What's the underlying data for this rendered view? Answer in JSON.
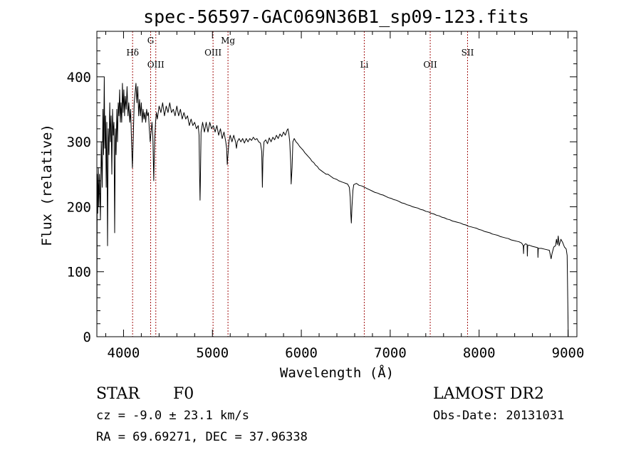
{
  "chart_data": {
    "type": "line",
    "title": "spec-56597-GAC069N36B1_sp09-123.fits",
    "xlabel": "Wavelength (Å)",
    "ylabel": "Flux (relative)",
    "xlim": [
      3700,
      9100
    ],
    "ylim": [
      0,
      470
    ],
    "xticks": [
      4000,
      5000,
      6000,
      7000,
      8000,
      9000
    ],
    "yticks": [
      0,
      100,
      200,
      300,
      400
    ],
    "grid": false,
    "legend": "none",
    "spectral_lines": [
      {
        "name": "Hδ",
        "wavelength": 4102,
        "label_row": "mid"
      },
      {
        "name": "G",
        "wavelength": 4305,
        "label_row": "top"
      },
      {
        "name": "OIII",
        "wavelength": 4363,
        "label_row": "low"
      },
      {
        "name": "OIII",
        "wavelength": 5007,
        "label_row": "mid"
      },
      {
        "name": "Mg",
        "wavelength": 5175,
        "label_row": "top"
      },
      {
        "name": "Li",
        "wavelength": 6708,
        "label_row": "low"
      },
      {
        "name": "OII",
        "wavelength": 7450,
        "label_row": "low"
      },
      {
        "name": "SII",
        "wavelength": 7870,
        "label_row": "mid"
      }
    ],
    "series": [
      {
        "name": "flux",
        "points": [
          [
            3700,
            0
          ],
          [
            3704,
            250
          ],
          [
            3710,
            190
          ],
          [
            3716,
            260
          ],
          [
            3722,
            200
          ],
          [
            3730,
            250
          ],
          [
            3740,
            180
          ],
          [
            3750,
            300
          ],
          [
            3760,
            230
          ],
          [
            3768,
            350
          ],
          [
            3775,
            280
          ],
          [
            3783,
            400
          ],
          [
            3790,
            290
          ],
          [
            3798,
            340
          ],
          [
            3805,
            230
          ],
          [
            3812,
            330
          ],
          [
            3820,
            140
          ],
          [
            3828,
            320
          ],
          [
            3836,
            280
          ],
          [
            3845,
            360
          ],
          [
            3853,
            300
          ],
          [
            3860,
            340
          ],
          [
            3868,
            250
          ],
          [
            3876,
            350
          ],
          [
            3884,
            310
          ],
          [
            3892,
            330
          ],
          [
            3900,
            160
          ],
          [
            3908,
            320
          ],
          [
            3916,
            280
          ],
          [
            3924,
            350
          ],
          [
            3932,
            300
          ],
          [
            3940,
            360
          ],
          [
            3948,
            340
          ],
          [
            3956,
            380
          ],
          [
            3964,
            330
          ],
          [
            3972,
            360
          ],
          [
            3980,
            330
          ],
          [
            3988,
            390
          ],
          [
            3996,
            345
          ],
          [
            4004,
            380
          ],
          [
            4012,
            340
          ],
          [
            4020,
            370
          ],
          [
            4030,
            350
          ],
          [
            4040,
            385
          ],
          [
            4050,
            340
          ],
          [
            4060,
            360
          ],
          [
            4070,
            330
          ],
          [
            4080,
            350
          ],
          [
            4090,
            300
          ],
          [
            4100,
            260
          ],
          [
            4110,
            310
          ],
          [
            4120,
            360
          ],
          [
            4130,
            375
          ],
          [
            4140,
            390
          ],
          [
            4150,
            360
          ],
          [
            4160,
            385
          ],
          [
            4170,
            340
          ],
          [
            4180,
            365
          ],
          [
            4190,
            340
          ],
          [
            4200,
            360
          ],
          [
            4210,
            330
          ],
          [
            4220,
            350
          ],
          [
            4230,
            335
          ],
          [
            4240,
            345
          ],
          [
            4250,
            330
          ],
          [
            4260,
            350
          ],
          [
            4270,
            340
          ],
          [
            4280,
            345
          ],
          [
            4290,
            320
          ],
          [
            4300,
            300
          ],
          [
            4310,
            315
          ],
          [
            4320,
            330
          ],
          [
            4330,
            310
          ],
          [
            4340,
            240
          ],
          [
            4350,
            300
          ],
          [
            4360,
            330
          ],
          [
            4370,
            345
          ],
          [
            4380,
            335
          ],
          [
            4400,
            355
          ],
          [
            4420,
            345
          ],
          [
            4440,
            360
          ],
          [
            4460,
            340
          ],
          [
            4480,
            355
          ],
          [
            4500,
            345
          ],
          [
            4520,
            360
          ],
          [
            4540,
            345
          ],
          [
            4560,
            350
          ],
          [
            4580,
            340
          ],
          [
            4600,
            355
          ],
          [
            4620,
            340
          ],
          [
            4640,
            350
          ],
          [
            4660,
            335
          ],
          [
            4680,
            345
          ],
          [
            4700,
            335
          ],
          [
            4720,
            340
          ],
          [
            4740,
            325
          ],
          [
            4760,
            335
          ],
          [
            4780,
            325
          ],
          [
            4800,
            330
          ],
          [
            4820,
            320
          ],
          [
            4840,
            325
          ],
          [
            4850,
            310
          ],
          [
            4855,
            250
          ],
          [
            4861,
            210
          ],
          [
            4866,
            250
          ],
          [
            4872,
            315
          ],
          [
            4890,
            330
          ],
          [
            4910,
            315
          ],
          [
            4930,
            330
          ],
          [
            4950,
            315
          ],
          [
            4970,
            330
          ],
          [
            4990,
            320
          ],
          [
            5010,
            325
          ],
          [
            5030,
            315
          ],
          [
            5050,
            325
          ],
          [
            5070,
            310
          ],
          [
            5090,
            320
          ],
          [
            5110,
            305
          ],
          [
            5130,
            315
          ],
          [
            5150,
            300
          ],
          [
            5160,
            290
          ],
          [
            5167,
            265
          ],
          [
            5172,
            275
          ],
          [
            5178,
            285
          ],
          [
            5185,
            300
          ],
          [
            5200,
            310
          ],
          [
            5220,
            300
          ],
          [
            5240,
            310
          ],
          [
            5260,
            300
          ],
          [
            5270,
            290
          ],
          [
            5280,
            300
          ],
          [
            5300,
            305
          ],
          [
            5320,
            300
          ],
          [
            5340,
            305
          ],
          [
            5360,
            298
          ],
          [
            5380,
            305
          ],
          [
            5400,
            300
          ],
          [
            5420,
            305
          ],
          [
            5440,
            302
          ],
          [
            5460,
            307
          ],
          [
            5480,
            303
          ],
          [
            5500,
            305
          ],
          [
            5520,
            300
          ],
          [
            5540,
            298
          ],
          [
            5555,
            285
          ],
          [
            5562,
            230
          ],
          [
            5568,
            275
          ],
          [
            5580,
            300
          ],
          [
            5600,
            303
          ],
          [
            5620,
            297
          ],
          [
            5640,
            306
          ],
          [
            5660,
            300
          ],
          [
            5680,
            307
          ],
          [
            5700,
            303
          ],
          [
            5720,
            310
          ],
          [
            5740,
            305
          ],
          [
            5760,
            312
          ],
          [
            5780,
            308
          ],
          [
            5800,
            315
          ],
          [
            5820,
            310
          ],
          [
            5840,
            318
          ],
          [
            5850,
            320
          ],
          [
            5860,
            312
          ],
          [
            5870,
            300
          ],
          [
            5880,
            270
          ],
          [
            5886,
            235
          ],
          [
            5890,
            245
          ],
          [
            5896,
            260
          ],
          [
            5905,
            300
          ],
          [
            5920,
            305
          ],
          [
            5940,
            300
          ],
          [
            5960,
            297
          ],
          [
            5980,
            293
          ],
          [
            6000,
            290
          ],
          [
            6020,
            287
          ],
          [
            6040,
            283
          ],
          [
            6060,
            280
          ],
          [
            6080,
            277
          ],
          [
            6100,
            274
          ],
          [
            6120,
            270
          ],
          [
            6140,
            268
          ],
          [
            6160,
            264
          ],
          [
            6180,
            262
          ],
          [
            6200,
            258
          ],
          [
            6220,
            256
          ],
          [
            6240,
            254
          ],
          [
            6260,
            252
          ],
          [
            6280,
            250
          ],
          [
            6300,
            250
          ],
          [
            6320,
            248
          ],
          [
            6340,
            246
          ],
          [
            6360,
            244
          ],
          [
            6380,
            243
          ],
          [
            6400,
            242
          ],
          [
            6420,
            240
          ],
          [
            6440,
            239
          ],
          [
            6460,
            238
          ],
          [
            6480,
            237
          ],
          [
            6500,
            236
          ],
          [
            6520,
            235
          ],
          [
            6540,
            230
          ],
          [
            6550,
            215
          ],
          [
            6556,
            190
          ],
          [
            6563,
            175
          ],
          [
            6570,
            200
          ],
          [
            6580,
            225
          ],
          [
            6590,
            234
          ],
          [
            6620,
            236
          ],
          [
            6650,
            233
          ],
          [
            6680,
            232
          ],
          [
            6710,
            230
          ],
          [
            6740,
            228
          ],
          [
            6770,
            226
          ],
          [
            6800,
            224
          ],
          [
            6830,
            222
          ],
          [
            6860,
            221
          ],
          [
            6890,
            219
          ],
          [
            6920,
            218
          ],
          [
            6950,
            216
          ],
          [
            6980,
            214
          ],
          [
            7010,
            213
          ],
          [
            7040,
            211
          ],
          [
            7070,
            210
          ],
          [
            7100,
            208
          ],
          [
            7130,
            206
          ],
          [
            7160,
            205
          ],
          [
            7190,
            203
          ],
          [
            7220,
            202
          ],
          [
            7250,
            200
          ],
          [
            7280,
            199
          ],
          [
            7310,
            198
          ],
          [
            7340,
            196
          ],
          [
            7370,
            195
          ],
          [
            7400,
            193
          ],
          [
            7430,
            192
          ],
          [
            7460,
            190
          ],
          [
            7490,
            189
          ],
          [
            7520,
            187
          ],
          [
            7550,
            186
          ],
          [
            7580,
            184
          ],
          [
            7610,
            183
          ],
          [
            7640,
            181
          ],
          [
            7670,
            180
          ],
          [
            7700,
            178
          ],
          [
            7730,
            177
          ],
          [
            7760,
            176
          ],
          [
            7790,
            175
          ],
          [
            7820,
            173
          ],
          [
            7850,
            172
          ],
          [
            7880,
            170
          ],
          [
            7910,
            169
          ],
          [
            7940,
            168
          ],
          [
            7970,
            167
          ],
          [
            8000,
            165
          ],
          [
            8030,
            164
          ],
          [
            8060,
            162
          ],
          [
            8090,
            161
          ],
          [
            8120,
            160
          ],
          [
            8150,
            158
          ],
          [
            8180,
            157
          ],
          [
            8210,
            156
          ],
          [
            8240,
            154
          ],
          [
            8270,
            153
          ],
          [
            8300,
            152
          ],
          [
            8330,
            151
          ],
          [
            8360,
            149
          ],
          [
            8390,
            148
          ],
          [
            8420,
            147
          ],
          [
            8450,
            146
          ],
          [
            8480,
            144
          ],
          [
            8497,
            140
          ],
          [
            8500,
            128
          ],
          [
            8503,
            140
          ],
          [
            8520,
            143
          ],
          [
            8540,
            142
          ],
          [
            8542,
            124
          ],
          [
            8546,
            140
          ],
          [
            8560,
            141
          ],
          [
            8580,
            140
          ],
          [
            8600,
            139
          ],
          [
            8630,
            138
          ],
          [
            8660,
            137
          ],
          [
            8662,
            122
          ],
          [
            8666,
            136
          ],
          [
            8700,
            136
          ],
          [
            8730,
            135
          ],
          [
            8760,
            134
          ],
          [
            8790,
            133
          ],
          [
            8810,
            120
          ],
          [
            8820,
            128
          ],
          [
            8840,
            138
          ],
          [
            8860,
            140
          ],
          [
            8870,
            150
          ],
          [
            8880,
            142
          ],
          [
            8890,
            155
          ],
          [
            8900,
            140
          ],
          [
            8920,
            150
          ],
          [
            8940,
            145
          ],
          [
            8960,
            138
          ],
          [
            8980,
            135
          ],
          [
            8990,
            125
          ],
          [
            9000,
            30
          ],
          [
            9002,
            0
          ]
        ]
      }
    ]
  },
  "annotations": {
    "object_class": "STAR",
    "subclass": "F0",
    "survey": "LAMOST DR2",
    "redshift_text": "cz = -9.0 ± 23.1 km/s",
    "obs_date_text": "Obs-Date: 20131031",
    "coords_text": "RA =  69.69271, DEC =  37.96338"
  }
}
